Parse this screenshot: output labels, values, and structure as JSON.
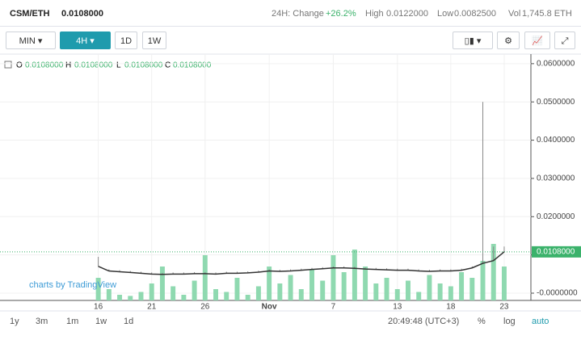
{
  "header": {
    "pair": "CSM/ETH",
    "price": "0.0108000",
    "change_label": "24H: Change",
    "change": "+26.2%",
    "high_label": "High",
    "high": "0.0122000",
    "low_label": "Low",
    "low": "0.0082500",
    "vol_label": "Vol",
    "vol": "1,745.8 ETH"
  },
  "toolbar": {
    "intervals": [
      "MIN",
      "4H",
      "1D",
      "1W"
    ]
  },
  "legend": {
    "o_label": "O",
    "o": "0.0108000",
    "h_label": "H",
    "h": "0.0108000",
    "l_label": "L",
    "l": "0.0108000",
    "c_label": "C",
    "c": "0.0108000"
  },
  "watermark": "charts by TradingView",
  "bottom": {
    "ranges": [
      "1y",
      "3m",
      "1m",
      "1w",
      "1d"
    ],
    "time": "20:49:48 (UTC+3)",
    "percent": "%",
    "log": "log",
    "auto": "auto"
  },
  "chart_data": {
    "type": "candlestick",
    "x": [
      0,
      1,
      2,
      3,
      4,
      5,
      6,
      7,
      8,
      9,
      10,
      11,
      12,
      13,
      14,
      15,
      16,
      17,
      18,
      19,
      20,
      21,
      22,
      23,
      24,
      25,
      26,
      27,
      28,
      29,
      30,
      31,
      32,
      33,
      34,
      35,
      36,
      37,
      38
    ],
    "xlim": [
      -9.2,
      40.5
    ],
    "xticks": [
      {
        "value": 0,
        "label": "16"
      },
      {
        "value": 5,
        "label": "21"
      },
      {
        "value": 10,
        "label": "26"
      },
      {
        "value": 16,
        "label": "Nov"
      },
      {
        "value": 22,
        "label": "7"
      },
      {
        "value": 28,
        "label": "13"
      },
      {
        "value": 33,
        "label": "18"
      },
      {
        "value": 38,
        "label": "23"
      }
    ],
    "ylim": [
      -0.0019,
      0.0625
    ],
    "yticks": [
      {
        "value": 0,
        "label": "-0.0000000"
      },
      {
        "value": 0.01,
        "label": "0.0100000"
      },
      {
        "value": 0.02,
        "label": "0.0200000"
      },
      {
        "value": 0.03,
        "label": "0.0300000"
      },
      {
        "value": 0.04,
        "label": "0.0400000"
      },
      {
        "value": 0.05,
        "label": "0.0500000"
      },
      {
        "value": 0.06,
        "label": "0.0600000"
      }
    ],
    "last_price": {
      "value": 0.0108,
      "label": "0.0108000"
    },
    "series": [
      {
        "name": "close",
        "color": "#333333",
        "values": [
          0.007,
          0.0058,
          0.0056,
          0.0054,
          0.0052,
          0.005,
          0.0049,
          0.005,
          0.005,
          0.0051,
          0.0051,
          0.005,
          0.0052,
          0.0052,
          0.0053,
          0.0055,
          0.0058,
          0.0057,
          0.0058,
          0.006,
          0.0062,
          0.0064,
          0.0066,
          0.0066,
          0.0065,
          0.0063,
          0.0062,
          0.0061,
          0.006,
          0.006,
          0.0058,
          0.0057,
          0.0058,
          0.0058,
          0.006,
          0.0066,
          0.0078,
          0.0085,
          0.0108
        ]
      },
      {
        "name": "high",
        "color": "#888888",
        "values": [
          0.0095,
          0.0062,
          0.006,
          0.0058,
          0.0056,
          0.0054,
          0.0053,
          0.0054,
          0.0054,
          0.0055,
          0.0055,
          0.0054,
          0.0056,
          0.0056,
          0.0057,
          0.0059,
          0.0062,
          0.0061,
          0.0062,
          0.0064,
          0.0066,
          0.0068,
          0.007,
          0.007,
          0.0069,
          0.0067,
          0.0066,
          0.0065,
          0.0064,
          0.0064,
          0.0062,
          0.0061,
          0.0062,
          0.0062,
          0.0064,
          0.007,
          0.05,
          0.0122,
          0.0122
        ]
      }
    ],
    "volume": {
      "color": "#8fd9b0",
      "vlim": [
        0,
        100
      ],
      "values": [
        40,
        20,
        10,
        8,
        15,
        30,
        60,
        25,
        10,
        35,
        80,
        20,
        15,
        40,
        10,
        25,
        60,
        30,
        45,
        20,
        55,
        35,
        80,
        50,
        90,
        60,
        30,
        40,
        20,
        35,
        15,
        45,
        30,
        25,
        50,
        40,
        70,
        100,
        60
      ]
    },
    "grid": true
  }
}
